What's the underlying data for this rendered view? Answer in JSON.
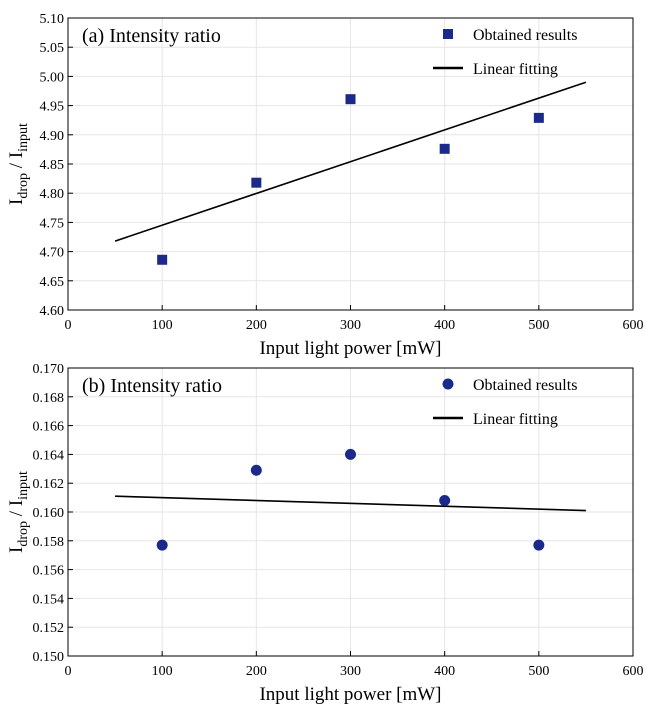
{
  "chart_data": [
    {
      "type": "scatter",
      "title": "(a) Intensity ratio",
      "xlabel": "Input light power [mW]",
      "ylabel_main": "I",
      "ylabel_sub1": "drop",
      "ylabel_sep": " / I",
      "ylabel_sub2": "input",
      "xlim": [
        0,
        600
      ],
      "ylim": [
        4.6,
        5.1
      ],
      "xticks": [
        0,
        100,
        200,
        300,
        400,
        500,
        600
      ],
      "yticks": [
        4.6,
        4.65,
        4.7,
        4.75,
        4.8,
        4.85,
        4.9,
        4.95,
        5.0,
        5.05,
        5.1
      ],
      "ytick_decimals": 2,
      "grid": true,
      "legend_position": "top-right",
      "marker": "square",
      "series": [
        {
          "name": "Obtained results",
          "x": [
            100,
            200,
            300,
            400,
            500
          ],
          "y": [
            4.686,
            4.818,
            4.961,
            4.876,
            4.929
          ],
          "color": "#1b2a8a"
        }
      ],
      "fit": {
        "name": "Linear fitting",
        "x": [
          50,
          550
        ],
        "y": [
          4.718,
          4.99
        ],
        "color": "#000000"
      }
    },
    {
      "type": "scatter",
      "title": "(b) Intensity ratio",
      "xlabel": "Input light power [mW]",
      "ylabel_main": "I",
      "ylabel_sub1": "drop",
      "ylabel_sep": " / I",
      "ylabel_sub2": "input",
      "xlim": [
        0,
        600
      ],
      "ylim": [
        0.15,
        0.17
      ],
      "xticks": [
        0,
        100,
        200,
        300,
        400,
        500,
        600
      ],
      "yticks": [
        0.15,
        0.152,
        0.154,
        0.156,
        0.158,
        0.16,
        0.162,
        0.164,
        0.166,
        0.168,
        0.17
      ],
      "ytick_decimals": 3,
      "grid": true,
      "legend_position": "top-right",
      "marker": "circle",
      "series": [
        {
          "name": "Obtained results",
          "x": [
            100,
            200,
            300,
            400,
            500
          ],
          "y": [
            0.1577,
            0.1629,
            0.164,
            0.1608,
            0.1577
          ],
          "color": "#1b2a8a"
        }
      ],
      "fit": {
        "name": "Linear fitting",
        "x": [
          50,
          550
        ],
        "y": [
          0.1611,
          0.1601
        ],
        "color": "#000000"
      }
    }
  ]
}
